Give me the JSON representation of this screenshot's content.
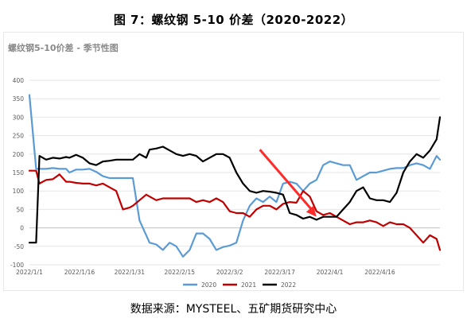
{
  "figure": {
    "title": "图 7：螺纹钢 5-10 价差（2020-2022）",
    "source": "数据来源：MYSTEEL、五矿期货研究中心"
  },
  "chart_data": {
    "type": "line",
    "title": "螺纹钢5-10价差 - 季节性图",
    "xlabel": "",
    "ylabel": "",
    "ylim": [
      -100,
      400
    ],
    "yticks": [
      -100,
      -50,
      0,
      50,
      100,
      150,
      200,
      250,
      300,
      350,
      400
    ],
    "xlim": [
      "2022-01-01",
      "2022-05-04"
    ],
    "xticks": [
      "2022/1/1",
      "2022/1/16",
      "2022/1/31",
      "2022/2/15",
      "2022/3/2",
      "2022/3/17",
      "2022/4/1",
      "2022/4/16"
    ],
    "grid": "horizontal",
    "legend": "bottom-center",
    "annotation": "red arrow pointing down to the 2022 low near 2022/3/28",
    "series": [
      {
        "name": "2020",
        "color": "#5b9bd5",
        "x": [
          "2022-01-01",
          "2022-01-03",
          "2022-01-04",
          "2022-01-06",
          "2022-01-08",
          "2022-01-10",
          "2022-01-12",
          "2022-01-13",
          "2022-01-15",
          "2022-01-17",
          "2022-01-19",
          "2022-01-21",
          "2022-01-23",
          "2022-01-25",
          "2022-01-27",
          "2022-01-29",
          "2022-01-31",
          "2022-02-01",
          "2022-02-03",
          "2022-02-05",
          "2022-02-06",
          "2022-02-08",
          "2022-02-10",
          "2022-02-12",
          "2022-02-14",
          "2022-02-16",
          "2022-02-18",
          "2022-02-20",
          "2022-02-22",
          "2022-02-24",
          "2022-02-26",
          "2022-02-28",
          "2022-03-02",
          "2022-03-04",
          "2022-03-06",
          "2022-03-08",
          "2022-03-10",
          "2022-03-12",
          "2022-03-14",
          "2022-03-16",
          "2022-03-18",
          "2022-03-20",
          "2022-03-22",
          "2022-03-24",
          "2022-03-26",
          "2022-03-28",
          "2022-03-30",
          "2022-04-01",
          "2022-04-03",
          "2022-04-05",
          "2022-04-07",
          "2022-04-09",
          "2022-04-11",
          "2022-04-13",
          "2022-04-15",
          "2022-04-17",
          "2022-04-19",
          "2022-04-21",
          "2022-04-23",
          "2022-04-25",
          "2022-04-27",
          "2022-04-29",
          "2022-05-01",
          "2022-05-03",
          "2022-05-04"
        ],
        "values": [
          360,
          160,
          160,
          160,
          162,
          160,
          160,
          150,
          158,
          158,
          160,
          152,
          140,
          135,
          135,
          135,
          135,
          135,
          20,
          -20,
          -40,
          -45,
          -60,
          -40,
          -50,
          -78,
          -60,
          -15,
          -15,
          -30,
          -60,
          -52,
          -48,
          -40,
          20,
          60,
          80,
          70,
          85,
          70,
          120,
          125,
          120,
          100,
          120,
          130,
          170,
          180,
          175,
          170,
          170,
          130,
          140,
          150,
          150,
          155,
          160,
          162,
          162,
          170,
          175,
          170,
          160,
          195,
          185
        ]
      },
      {
        "name": "2021",
        "color": "#c00000",
        "x": [
          "2022-01-01",
          "2022-01-03",
          "2022-01-04",
          "2022-01-06",
          "2022-01-08",
          "2022-01-10",
          "2022-01-12",
          "2022-01-13",
          "2022-01-15",
          "2022-01-17",
          "2022-01-19",
          "2022-01-21",
          "2022-01-23",
          "2022-01-25",
          "2022-01-27",
          "2022-01-29",
          "2022-01-31",
          "2022-02-01",
          "2022-02-03",
          "2022-02-05",
          "2022-02-06",
          "2022-02-08",
          "2022-02-10",
          "2022-02-12",
          "2022-02-14",
          "2022-02-16",
          "2022-02-18",
          "2022-02-20",
          "2022-02-22",
          "2022-02-24",
          "2022-02-26",
          "2022-02-28",
          "2022-03-02",
          "2022-03-04",
          "2022-03-06",
          "2022-03-08",
          "2022-03-10",
          "2022-03-12",
          "2022-03-14",
          "2022-03-16",
          "2022-03-18",
          "2022-03-20",
          "2022-03-22",
          "2022-03-24",
          "2022-03-26",
          "2022-03-28",
          "2022-03-30",
          "2022-04-01",
          "2022-04-03",
          "2022-04-05",
          "2022-04-07",
          "2022-04-09",
          "2022-04-11",
          "2022-04-13",
          "2022-04-15",
          "2022-04-17",
          "2022-04-19",
          "2022-04-21",
          "2022-04-23",
          "2022-04-25",
          "2022-04-27",
          "2022-04-29",
          "2022-05-01",
          "2022-05-03",
          "2022-05-04"
        ],
        "values": [
          155,
          155,
          120,
          130,
          132,
          145,
          125,
          125,
          122,
          120,
          120,
          115,
          120,
          110,
          100,
          50,
          55,
          60,
          75,
          90,
          85,
          75,
          80,
          80,
          80,
          80,
          80,
          70,
          75,
          70,
          80,
          70,
          45,
          40,
          40,
          30,
          50,
          60,
          60,
          50,
          65,
          70,
          68,
          100,
          85,
          45,
          35,
          40,
          30,
          20,
          10,
          15,
          15,
          20,
          15,
          5,
          15,
          10,
          10,
          0,
          -20,
          -40,
          -20,
          -30,
          -60
        ]
      },
      {
        "name": "2022",
        "color": "#000000",
        "x": [
          "2022-01-01",
          "2022-01-03",
          "2022-01-04",
          "2022-01-06",
          "2022-01-08",
          "2022-01-10",
          "2022-01-12",
          "2022-01-13",
          "2022-01-15",
          "2022-01-17",
          "2022-01-19",
          "2022-01-21",
          "2022-01-23",
          "2022-01-25",
          "2022-01-27",
          "2022-01-29",
          "2022-01-31",
          "2022-02-01",
          "2022-02-03",
          "2022-02-05",
          "2022-02-06",
          "2022-02-08",
          "2022-02-10",
          "2022-02-12",
          "2022-02-14",
          "2022-02-16",
          "2022-02-18",
          "2022-02-20",
          "2022-02-22",
          "2022-02-24",
          "2022-02-26",
          "2022-02-28",
          "2022-03-02",
          "2022-03-04",
          "2022-03-06",
          "2022-03-08",
          "2022-03-10",
          "2022-03-12",
          "2022-03-14",
          "2022-03-16",
          "2022-03-18",
          "2022-03-20",
          "2022-03-22",
          "2022-03-24",
          "2022-03-26",
          "2022-03-28",
          "2022-03-30",
          "2022-04-01",
          "2022-04-03",
          "2022-04-05",
          "2022-04-07",
          "2022-04-09",
          "2022-04-11",
          "2022-04-13",
          "2022-04-15",
          "2022-04-17",
          "2022-04-19",
          "2022-04-21",
          "2022-04-23",
          "2022-04-25",
          "2022-04-27",
          "2022-04-29",
          "2022-05-01",
          "2022-05-03",
          "2022-05-04"
        ],
        "values": [
          -40,
          -40,
          195,
          185,
          190,
          188,
          192,
          190,
          198,
          190,
          175,
          170,
          180,
          182,
          185,
          185,
          185,
          185,
          200,
          190,
          212,
          215,
          220,
          210,
          200,
          195,
          200,
          195,
          180,
          190,
          200,
          200,
          190,
          150,
          120,
          100,
          95,
          100,
          98,
          95,
          90,
          40,
          35,
          25,
          30,
          22,
          30,
          30,
          30,
          50,
          70,
          100,
          110,
          80,
          75,
          75,
          70,
          95,
          150,
          180,
          200,
          190,
          210,
          240,
          300
        ]
      }
    ]
  }
}
